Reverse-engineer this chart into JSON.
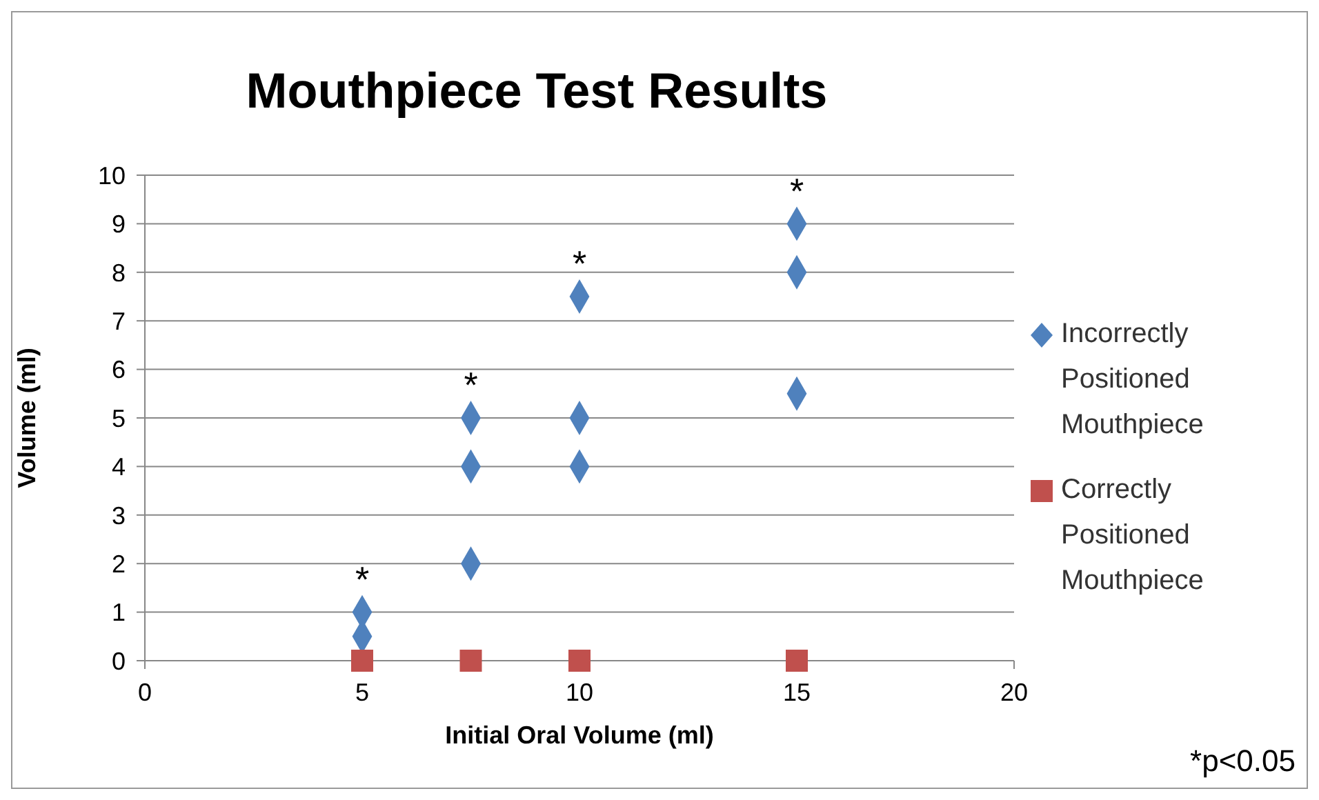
{
  "chart_data": {
    "type": "scatter",
    "title": "Mouthpiece Test Results",
    "xlabel": "Initial Oral Volume (ml)",
    "ylabel": "Volume (ml)",
    "series": [
      {
        "name": "Incorrectly Positioned Mouthpiece",
        "color": "#4f81bd",
        "marker": "diamond",
        "x": [
          5,
          5,
          7.5,
          7.5,
          7.5,
          10,
          10,
          10,
          15,
          15,
          15
        ],
        "values": [
          1,
          0.5,
          5,
          4,
          2,
          7.5,
          5,
          4,
          9,
          8,
          5.5
        ]
      },
      {
        "name": "Correctly Positioned Mouthpiece",
        "color": "#c0504d",
        "marker": "square",
        "x": [
          5,
          7.5,
          10,
          15
        ],
        "values": [
          0,
          0,
          0,
          0
        ]
      }
    ],
    "xlim": [
      0,
      20
    ],
    "xticks": [
      0,
      5,
      10,
      15,
      20
    ],
    "ylim": [
      0,
      10
    ],
    "yticks": [
      0,
      1,
      2,
      3,
      4,
      5,
      6,
      7,
      8,
      9,
      10
    ],
    "grid": "y",
    "legend": "right",
    "annotations": [
      {
        "text": "*",
        "x": 5,
        "y": 1
      },
      {
        "text": "*",
        "x": 7.5,
        "y": 5
      },
      {
        "text": "*",
        "x": 10,
        "y": 7.5
      },
      {
        "text": "*",
        "x": 15,
        "y": 9
      },
      "*p<0.05"
    ]
  }
}
